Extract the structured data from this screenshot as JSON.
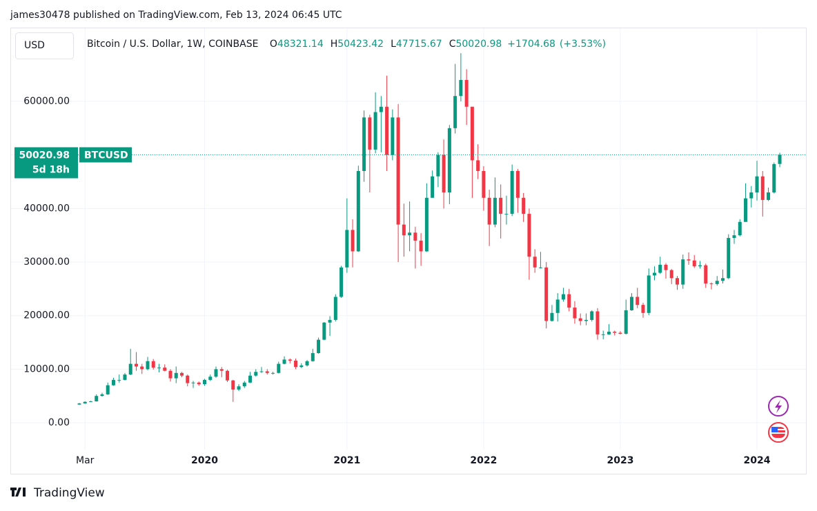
{
  "publisher_line": "james30478 published on TradingView.com, Feb 13, 2024 06:45 UTC",
  "currency": "USD",
  "footer": "TradingView",
  "chart_data": {
    "type": "candlestick",
    "title": "Bitcoin / U.S. Dollar, 1W, COINBASE",
    "series_name": "BTCUSD",
    "ohlc_prefixes": [
      "O",
      "H",
      "L",
      "C"
    ],
    "change": {
      "value": 1704.68,
      "label": "+1704.68"
    },
    "change_pct": {
      "value": 3.53,
      "label": "(+3.53%)"
    },
    "countdown": "5d 18h",
    "up_color": "#089981",
    "down_color": "#f23645",
    "grid": true,
    "ylim": [
      -4760,
      73520
    ],
    "yticks": [
      {
        "value": 0,
        "label": "0.00"
      },
      {
        "value": 10000,
        "label": "10000.00"
      },
      {
        "value": 20000,
        "label": "20000.00"
      },
      {
        "value": 30000,
        "label": "30000.00"
      },
      {
        "value": 40000,
        "label": "40000.00"
      },
      {
        "value": 50000,
        "label": "50000.00"
      },
      {
        "value": 60000,
        "label": "60000.00"
      }
    ],
    "xlim": [
      -0.6,
      127.6
    ],
    "xticks": [
      {
        "value": 1,
        "label": "Mar"
      },
      {
        "value": 22,
        "label": "2020"
      },
      {
        "value": 47,
        "label": "2021"
      },
      {
        "value": 71,
        "label": "2022"
      },
      {
        "value": 95,
        "label": "2023"
      },
      {
        "value": 119,
        "label": "2024"
      }
    ],
    "candles": [
      [
        3400,
        3700,
        3350,
        3600
      ],
      [
        3600,
        4000,
        3550,
        3900
      ],
      [
        3900,
        4100,
        3850,
        4000
      ],
      [
        4000,
        5300,
        3950,
        5000
      ],
      [
        5000,
        5600,
        4900,
        5300
      ],
      [
        5300,
        7500,
        5200,
        7000
      ],
      [
        7000,
        8400,
        6900,
        8000
      ],
      [
        8000,
        9000,
        7500,
        8000
      ],
      [
        8000,
        9300,
        7900,
        9000
      ],
      [
        9000,
        13800,
        8900,
        11000
      ],
      [
        11000,
        13200,
        9700,
        10500
      ],
      [
        10500,
        11000,
        9100,
        10000
      ],
      [
        10000,
        12300,
        9800,
        11500
      ],
      [
        11500,
        11900,
        9900,
        10300
      ],
      [
        10300,
        11000,
        9400,
        10300
      ],
      [
        10300,
        10900,
        9600,
        9700
      ],
      [
        9700,
        10000,
        7700,
        8300
      ],
      [
        8300,
        10500,
        7400,
        9300
      ],
      [
        9300,
        9500,
        8500,
        8800
      ],
      [
        8800,
        9000,
        6800,
        7400
      ],
      [
        7400,
        7800,
        6500,
        7500
      ],
      [
        7500,
        7700,
        6900,
        7200
      ],
      [
        7200,
        8200,
        6900,
        8000
      ],
      [
        8000,
        9000,
        7800,
        8600
      ],
      [
        8600,
        10500,
        8400,
        10000
      ],
      [
        10000,
        10400,
        8500,
        9700
      ],
      [
        9700,
        9900,
        7600,
        7900
      ],
      [
        7900,
        8000,
        3900,
        6200
      ],
      [
        6200,
        7200,
        5900,
        6800
      ],
      [
        6800,
        7800,
        6500,
        7500
      ],
      [
        7500,
        9500,
        7400,
        8800
      ],
      [
        8800,
        10000,
        8600,
        9500
      ],
      [
        9500,
        10400,
        9300,
        9600
      ],
      [
        9600,
        10000,
        9000,
        9300
      ],
      [
        9300,
        9500,
        9000,
        9300
      ],
      [
        9300,
        11400,
        9200,
        11000
      ],
      [
        11000,
        12400,
        10900,
        11800
      ],
      [
        11800,
        12000,
        11100,
        11600
      ],
      [
        11600,
        12000,
        10000,
        10400
      ],
      [
        10400,
        11100,
        10200,
        10700
      ],
      [
        10700,
        11700,
        10500,
        11500
      ],
      [
        11500,
        13800,
        11400,
        13000
      ],
      [
        13000,
        15900,
        12900,
        15500
      ],
      [
        15500,
        18800,
        15400,
        18700
      ],
      [
        18700,
        19900,
        16200,
        19200
      ],
      [
        19200,
        24000,
        18900,
        23500
      ],
      [
        23500,
        29300,
        23300,
        29000
      ],
      [
        29000,
        41900,
        28000,
        36000
      ],
      [
        36000,
        38000,
        29000,
        32000
      ],
      [
        32000,
        48000,
        31900,
        47000
      ],
      [
        47000,
        58300,
        45000,
        57000
      ],
      [
        57000,
        57500,
        43000,
        51000
      ],
      [
        51000,
        61700,
        50300,
        58000
      ],
      [
        58000,
        61000,
        50500,
        59000
      ],
      [
        59000,
        64800,
        47000,
        50000
      ],
      [
        50000,
        58500,
        49000,
        57000
      ],
      [
        57000,
        59500,
        30000,
        37000
      ],
      [
        37000,
        40900,
        31000,
        35000
      ],
      [
        35000,
        41300,
        32000,
        35500
      ],
      [
        35500,
        36600,
        28800,
        34000
      ],
      [
        34000,
        35400,
        29300,
        32000
      ],
      [
        32000,
        44700,
        31900,
        42000
      ],
      [
        42000,
        47100,
        42000,
        46000
      ],
      [
        46000,
        50500,
        44000,
        50000
      ],
      [
        50000,
        52900,
        40000,
        43000
      ],
      [
        43000,
        55600,
        40800,
        55000
      ],
      [
        55000,
        67000,
        54000,
        61000
      ],
      [
        61000,
        69000,
        60000,
        64000
      ],
      [
        64000,
        66000,
        55600,
        59000
      ],
      [
        59000,
        59000,
        42000,
        49000
      ],
      [
        49000,
        52000,
        45500,
        47000
      ],
      [
        47000,
        47900,
        39600,
        42000
      ],
      [
        42000,
        43500,
        33000,
        37000
      ],
      [
        37000,
        45800,
        36500,
        42000
      ],
      [
        42000,
        44500,
        34400,
        39000
      ],
      [
        39000,
        42400,
        37000,
        39000
      ],
      [
        39000,
        48200,
        38600,
        47000
      ],
      [
        47000,
        47400,
        39200,
        42000
      ],
      [
        42000,
        42900,
        37500,
        39000
      ],
      [
        39000,
        40000,
        26700,
        31000
      ],
      [
        31000,
        32400,
        28000,
        29000
      ],
      [
        29000,
        31900,
        28800,
        29000
      ],
      [
        29000,
        30000,
        17600,
        19000
      ],
      [
        19000,
        22000,
        18900,
        20500
      ],
      [
        20500,
        24200,
        18900,
        23000
      ],
      [
        23000,
        25200,
        22600,
        24000
      ],
      [
        24000,
        25000,
        20800,
        21500
      ],
      [
        21500,
        22700,
        18500,
        19500
      ],
      [
        19500,
        20400,
        18200,
        19000
      ],
      [
        19000,
        20400,
        18200,
        19200
      ],
      [
        19200,
        21000,
        18900,
        20800
      ],
      [
        20800,
        21400,
        15500,
        16500
      ],
      [
        16500,
        17200,
        15600,
        16500
      ],
      [
        16500,
        18400,
        16400,
        17000
      ],
      [
        17000,
        17200,
        16300,
        16800
      ],
      [
        16800,
        17100,
        16500,
        16600
      ],
      [
        16600,
        23000,
        16500,
        21000
      ],
      [
        21000,
        24200,
        20900,
        23500
      ],
      [
        23500,
        25200,
        21400,
        22000
      ],
      [
        22000,
        22400,
        19600,
        20500
      ],
      [
        20500,
        28800,
        20100,
        27500
      ],
      [
        27500,
        29200,
        26600,
        28000
      ],
      [
        28000,
        31000,
        27800,
        29500
      ],
      [
        29500,
        29800,
        26900,
        28500
      ],
      [
        28500,
        28700,
        25900,
        27000
      ],
      [
        27000,
        27400,
        24800,
        25800
      ],
      [
        25800,
        31400,
        25000,
        30500
      ],
      [
        30500,
        31800,
        29500,
        30300
      ],
      [
        30300,
        31300,
        28900,
        29200
      ],
      [
        29200,
        30200,
        28800,
        29400
      ],
      [
        29400,
        29700,
        25200,
        26000
      ],
      [
        26000,
        26200,
        24900,
        25900
      ],
      [
        25900,
        27400,
        25600,
        26500
      ],
      [
        26500,
        28600,
        26000,
        27000
      ],
      [
        27000,
        35200,
        26800,
        34500
      ],
      [
        34500,
        36000,
        33400,
        35000
      ],
      [
        35000,
        38000,
        34800,
        37500
      ],
      [
        37500,
        44700,
        37500,
        41900
      ],
      [
        41900,
        44200,
        40200,
        43000
      ],
      [
        43000,
        48900,
        41500,
        46000
      ],
      [
        46000,
        47000,
        38500,
        41600
      ],
      [
        41600,
        43900,
        41400,
        43000
      ],
      [
        43000,
        48600,
        42800,
        48300
      ],
      [
        48321.14,
        50423.42,
        47715.67,
        50020.98
      ]
    ]
  }
}
